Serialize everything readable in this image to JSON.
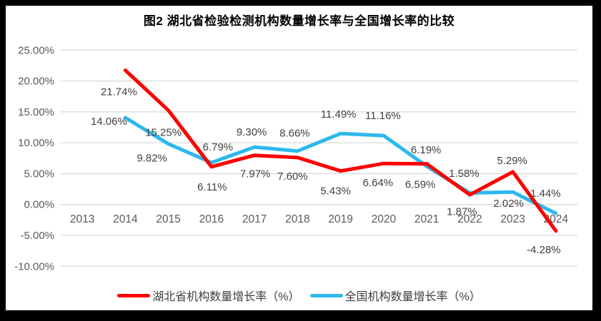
{
  "title": "图2  湖北省检验检测机构数量增长率与全国增长率的比较",
  "chart_data": {
    "type": "line",
    "title": "图2  湖北省检验检测机构数量增长率与全国增长率的比较",
    "categories": [
      "2013",
      "2014",
      "2015",
      "2016",
      "2017",
      "2018",
      "2019",
      "2020",
      "2021",
      "2022",
      "2023",
      "2024"
    ],
    "data_start_index": 1,
    "series": [
      {
        "name": "湖北省机构数量增长率（%）",
        "color": "#FE0000",
        "values": [
          21.74,
          15.25,
          6.11,
          7.97,
          7.6,
          5.43,
          6.64,
          6.59,
          1.58,
          5.29,
          -4.28
        ],
        "labels": [
          "21.74%",
          "15.25%",
          "6.11%",
          "7.97%",
          "7.60%",
          "5.43%",
          "6.64%",
          "6.59%",
          "1.58%",
          "5.29%",
          "-4.28%"
        ],
        "label_offsets": [
          [
            -9,
            30
          ],
          [
            -7,
            31
          ],
          [
            1,
            28
          ],
          [
            1,
            26
          ],
          [
            -7,
            26
          ],
          [
            -7,
            28
          ],
          [
            -8,
            27
          ],
          [
            -9,
            29
          ],
          [
            -8,
            -30
          ],
          [
            -1,
            -16
          ],
          [
            -17,
            26
          ]
        ]
      },
      {
        "name": "全国机构数量增长率（%）",
        "color": "#2CB8EC",
        "values": [
          14.06,
          9.82,
          6.79,
          9.3,
          8.66,
          11.49,
          11.16,
          6.19,
          1.87,
          2.02,
          -1.44
        ],
        "labels": [
          "14.06%",
          "9.82%",
          "6.79%",
          "9.30%",
          "8.66%",
          "11.49%",
          "11.16%",
          "6.19%",
          "1.87%",
          "2.02%",
          "-1.44%"
        ],
        "label_offsets": [
          [
            -23,
            5
          ],
          [
            -23,
            20
          ],
          [
            9,
            -22
          ],
          [
            -4,
            -21
          ],
          [
            -4,
            -25
          ],
          [
            -3,
            -27
          ],
          [
            -1,
            -28
          ],
          [
            -1,
            -23
          ],
          [
            -11,
            26
          ],
          [
            -6,
            16
          ],
          [
            -17,
            -28
          ]
        ]
      }
    ],
    "ylim": [
      -10,
      25
    ],
    "ytick_step": 5,
    "ytick_labels": [
      "25.00%",
      "20.00%",
      "15.00%",
      "10.00%",
      "5.00%",
      "0.00%",
      "-5.00%",
      "-10.00%"
    ],
    "ytick_values": [
      25,
      20,
      15,
      10,
      5,
      0,
      -5,
      -10
    ],
    "xlabel": "",
    "ylabel": "",
    "grid": true,
    "legend_position": "bottom",
    "colors": {
      "grid": "#D9D9D9",
      "axis_text": "#595959",
      "data_label_text": "#404040",
      "background": "#FFFFFF",
      "border": "#000000"
    }
  }
}
